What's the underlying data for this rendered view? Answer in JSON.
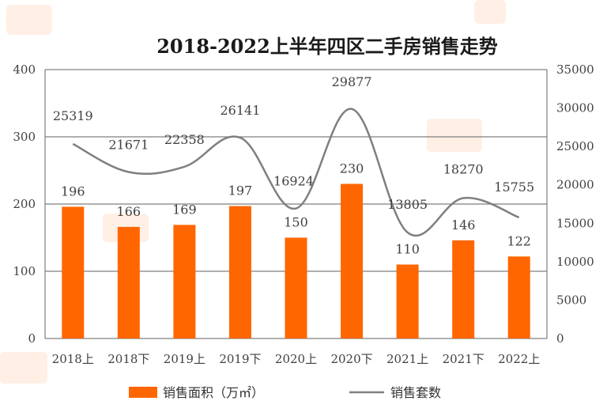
{
  "chart_data": {
    "type": "bar+line",
    "title": "2018-2022上半年四区二手房销售走势",
    "categories": [
      "2018上",
      "2018下",
      "2019上",
      "2019下",
      "2020上",
      "2020下",
      "2021上",
      "2021下",
      "2022上"
    ],
    "series": [
      {
        "name": "销售面积（万㎡）",
        "type": "bar",
        "axis": "left",
        "values": [
          196,
          166,
          169,
          197,
          150,
          230,
          110,
          146,
          122
        ]
      },
      {
        "name": "销售套数",
        "type": "line",
        "axis": "right",
        "values": [
          25319,
          21671,
          22358,
          26141,
          16924,
          29877,
          13805,
          18270,
          15755
        ]
      }
    ],
    "y_left": {
      "min": 0,
      "max": 400,
      "ticks": [
        "0",
        "100",
        "200",
        "300",
        "400"
      ]
    },
    "y_right": {
      "min": 0,
      "max": 35000,
      "ticks": [
        "0",
        "5000",
        "10000",
        "15000",
        "20000",
        "25000",
        "30000",
        "35000"
      ]
    },
    "grid": true,
    "legend_position": "bottom",
    "colors": {
      "bar": "#ff6600",
      "line": "#7f7f7f",
      "grid": "#7f7f7f"
    }
  }
}
